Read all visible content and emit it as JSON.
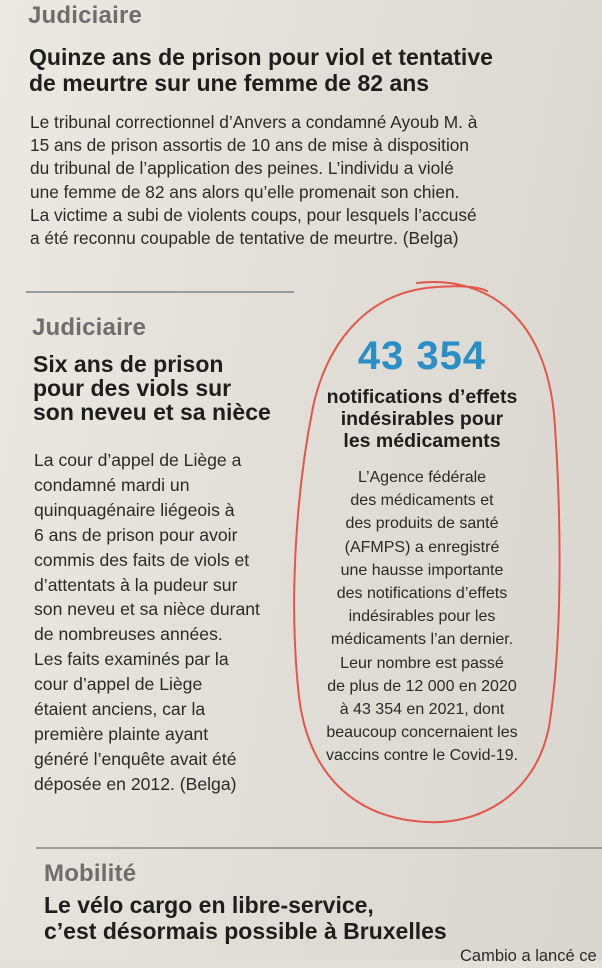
{
  "article1": {
    "category": "Judiciaire",
    "headline": [
      "Quinze ans de prison pour viol et tentative",
      "de meurtre sur une femme de 82 ans"
    ],
    "body": [
      "Le tribunal correctionnel d’Anvers a condamné Ayoub M. à",
      "15 ans de prison assortis de 10 ans de mise à disposition",
      "du tribunal de l’application des peines. L’individu a violé",
      "une femme de 82 ans alors qu’elle promenait son chien.",
      "La victime a subi de violents coups, pour lesquels l’accusé",
      "a été reconnu coupable de tentative de meurtre. (Belga)"
    ]
  },
  "article2": {
    "category": "Judiciaire",
    "headline": [
      "Six ans de prison",
      "pour des viols sur",
      "son neveu et sa nièce"
    ],
    "body": [
      "La cour d’appel de Liège a",
      "condamné mardi un",
      "quinquagénaire liégeois à",
      "6 ans de prison pour avoir",
      "commis des faits de viols et",
      "d’attentats à la pudeur sur",
      "son neveu et sa nièce durant",
      "de nombreuses années.",
      "Les faits examinés par la",
      "cour d’appel de Liège",
      "étaient anciens, car la",
      "première plainte ayant",
      "généré l’enquête avait été",
      "déposée en 2012. (Belga)"
    ]
  },
  "sidebar": {
    "number": "43 354",
    "title": [
      "notifications d’effets",
      "indésirables pour",
      "les médicaments"
    ],
    "body": [
      "L’Agence fédérale",
      "des médicaments et",
      "des produits de santé",
      "(AFMPS) a enregistré",
      "une hausse importante",
      "des notifications d’effets",
      "indésirables pour les",
      "médicaments l’an dernier.",
      "Leur nombre est passé",
      "de plus de 12 000 en 2020",
      "à 43 354 en 2021, dont",
      "beaucoup concernaient les",
      "vaccins contre le Covid-19."
    ],
    "accent_color": "#2a8fc6",
    "marker_color": "#e2574c"
  },
  "article3": {
    "category": "Mobilité",
    "headline": [
      "Le vélo cargo en libre-service,",
      "c’est désormais possible à Bruxelles"
    ],
    "teaser": "Cambio a lancé ce"
  }
}
